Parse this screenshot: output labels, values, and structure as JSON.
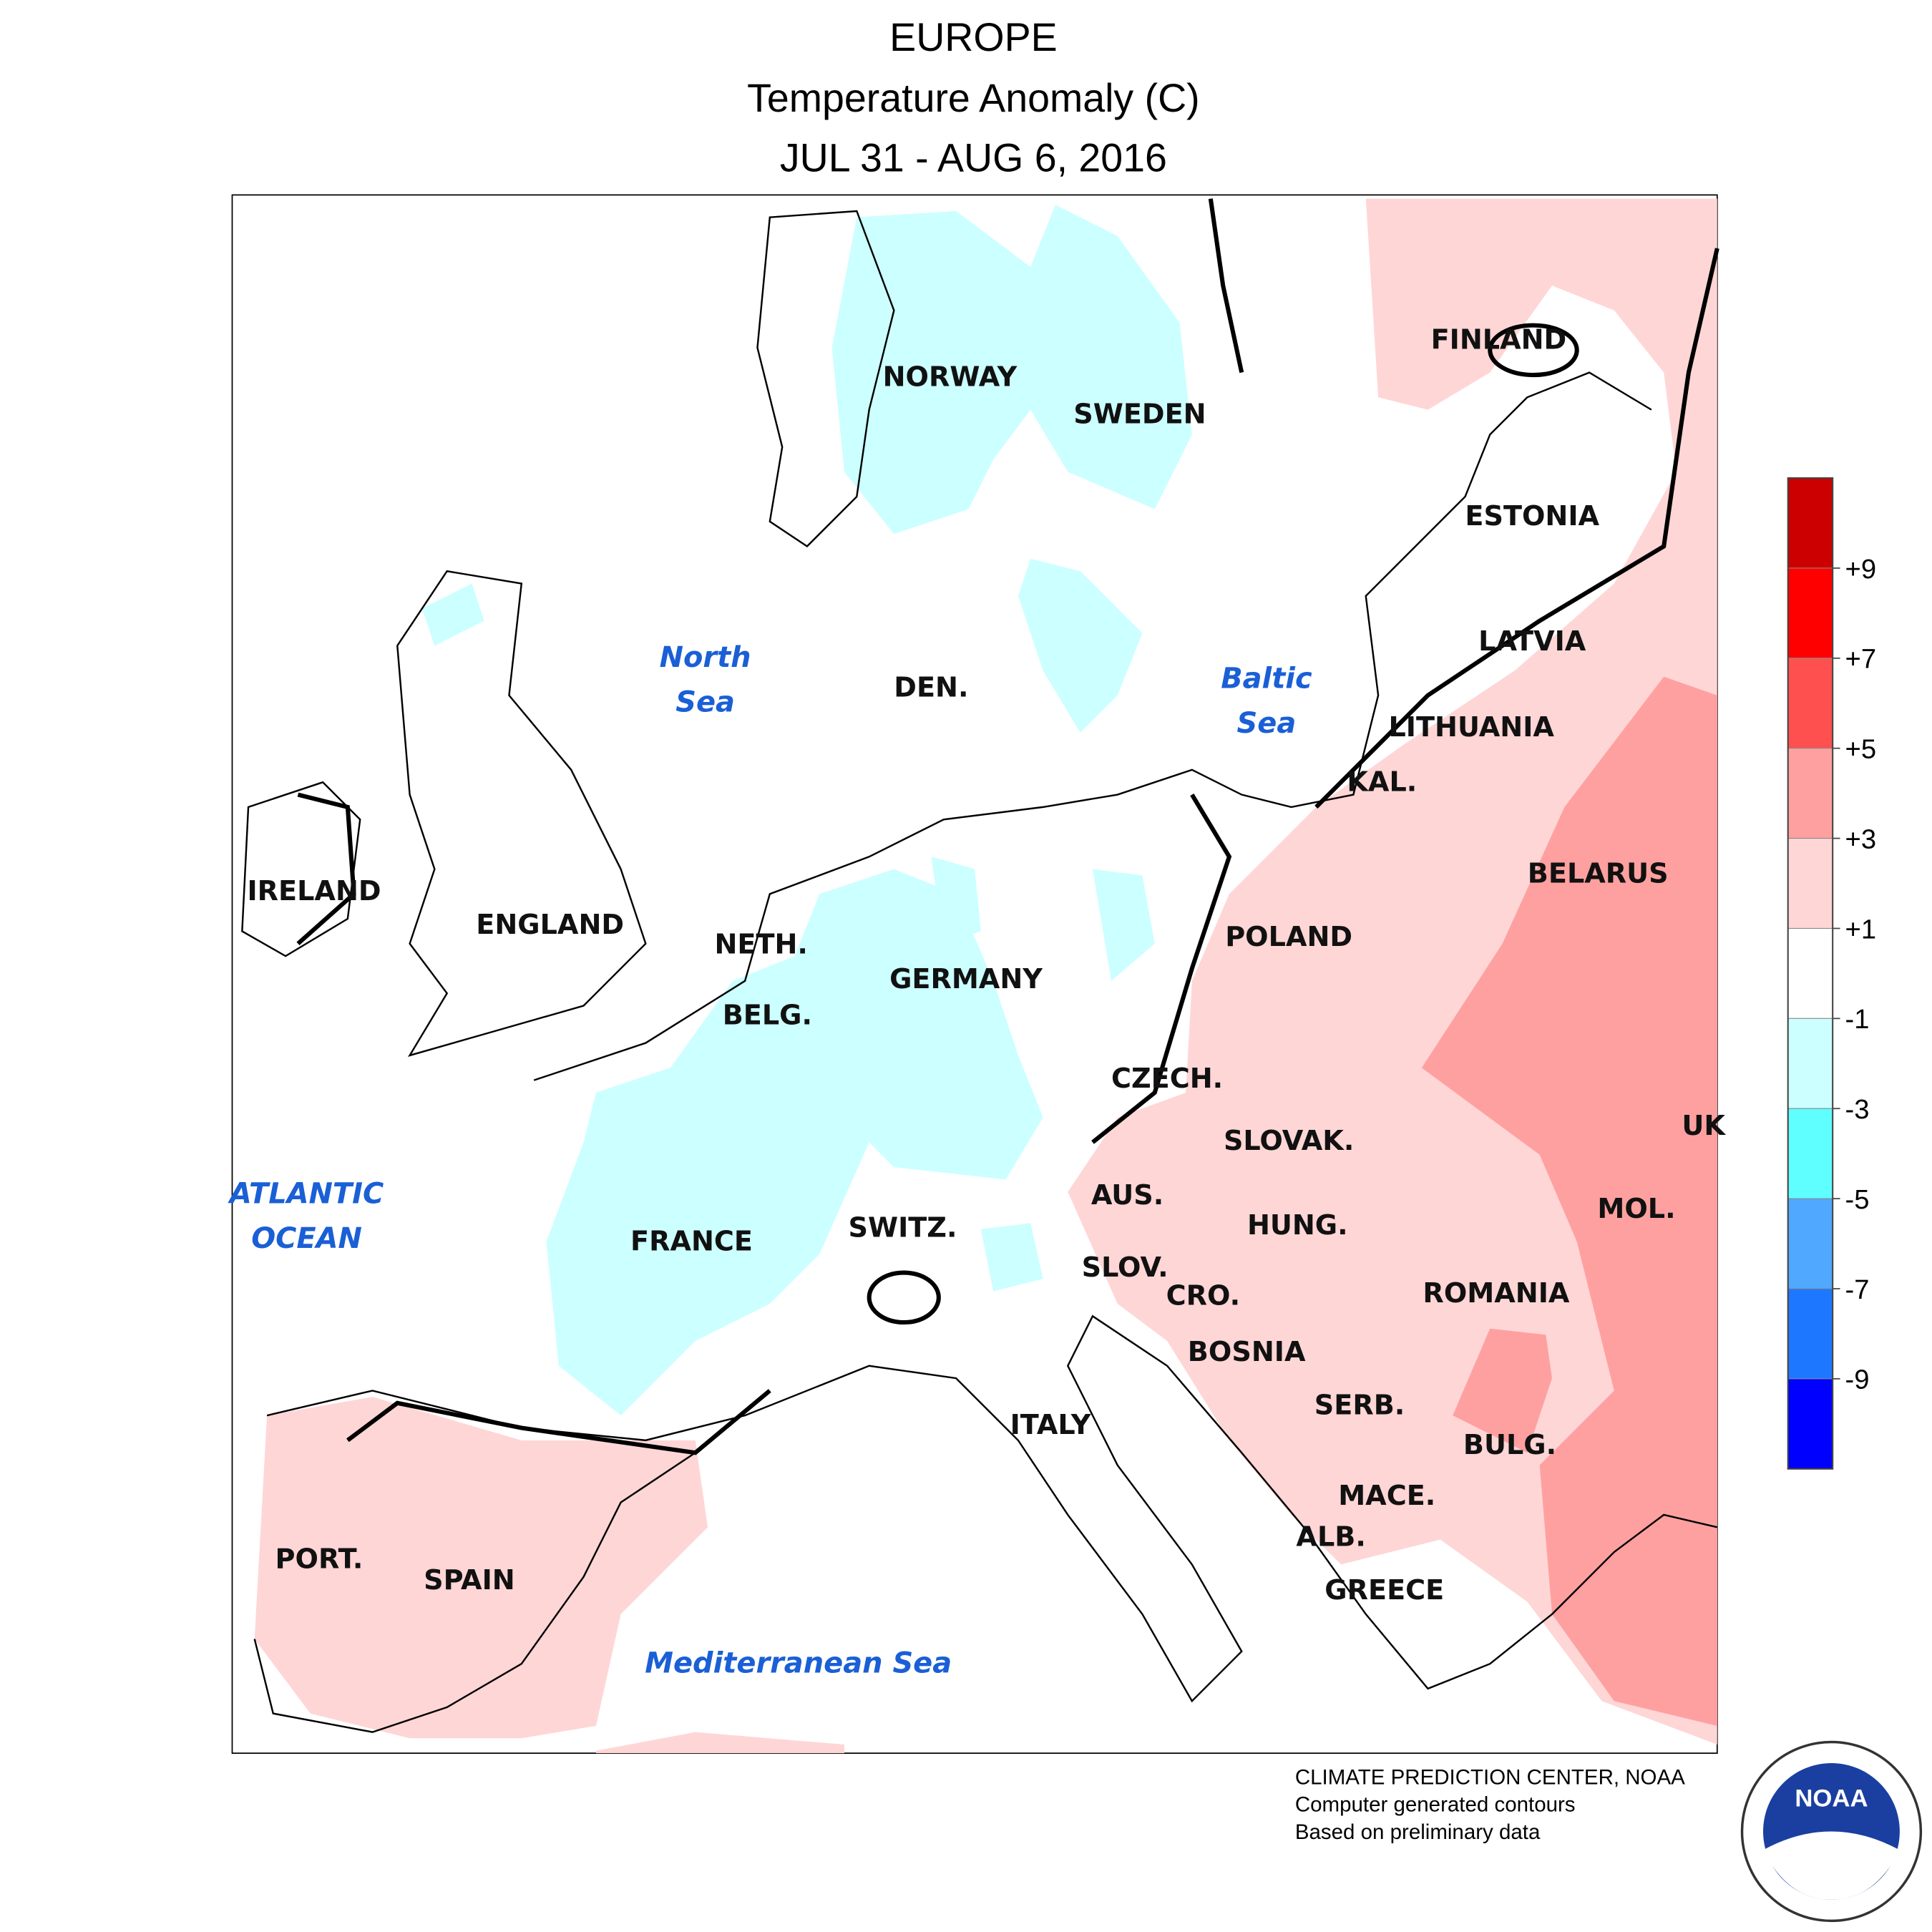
{
  "header": {
    "title": "EUROPE",
    "subtitle": "Temperature Anomaly (C)",
    "period": "JUL 31 - AUG 6, 2016"
  },
  "countries": [
    "NORWAY",
    "SWEDEN",
    "FINLAND",
    "ESTONIA",
    "LATVIA",
    "LITHUANIA",
    "KAL.",
    "BELARUS",
    "POLAND",
    "IRELAND",
    "ENGLAND",
    "NETH.",
    "BELG.",
    "GERMANY",
    "DEN.",
    "CZECH.",
    "SLOVAK.",
    "UK",
    "AUS.",
    "HUNG.",
    "MOL.",
    "SWITZ.",
    "FRANCE",
    "SLOV.",
    "CRO.",
    "ROMANIA",
    "BOSNIA",
    "SERB.",
    "ITALY",
    "BULG.",
    "MACE.",
    "ALB.",
    "GREECE",
    "PORT.",
    "SPAIN"
  ],
  "seas": [
    [
      "North",
      "Sea"
    ],
    [
      "Baltic",
      "Sea"
    ],
    [
      "ATLANTIC",
      "OCEAN"
    ],
    [
      "Mediterranean Sea"
    ]
  ],
  "legend": {
    "colors": [
      "#cc0000",
      "#ff0000",
      "#ff5050",
      "#ffa0a0",
      "#ffd6d6",
      "#ffffff",
      "#ccffff",
      "#60ffff",
      "#50a8ff",
      "#1e78ff",
      "#0000ff"
    ],
    "ticks": [
      {
        "value": 9,
        "label": "+9"
      },
      {
        "value": 7,
        "label": "+7"
      },
      {
        "value": 5,
        "label": "+5"
      },
      {
        "value": 3,
        "label": "+3"
      },
      {
        "value": 1,
        "label": "+1"
      },
      -1,
      -3,
      -5,
      -7,
      -9
    ]
  },
  "footer": [
    "CLIMATE PREDICTION CENTER, NOAA",
    "Computer generated contours",
    "Based on preliminary data"
  ],
  "logo": {
    "text": "NOAA"
  }
}
